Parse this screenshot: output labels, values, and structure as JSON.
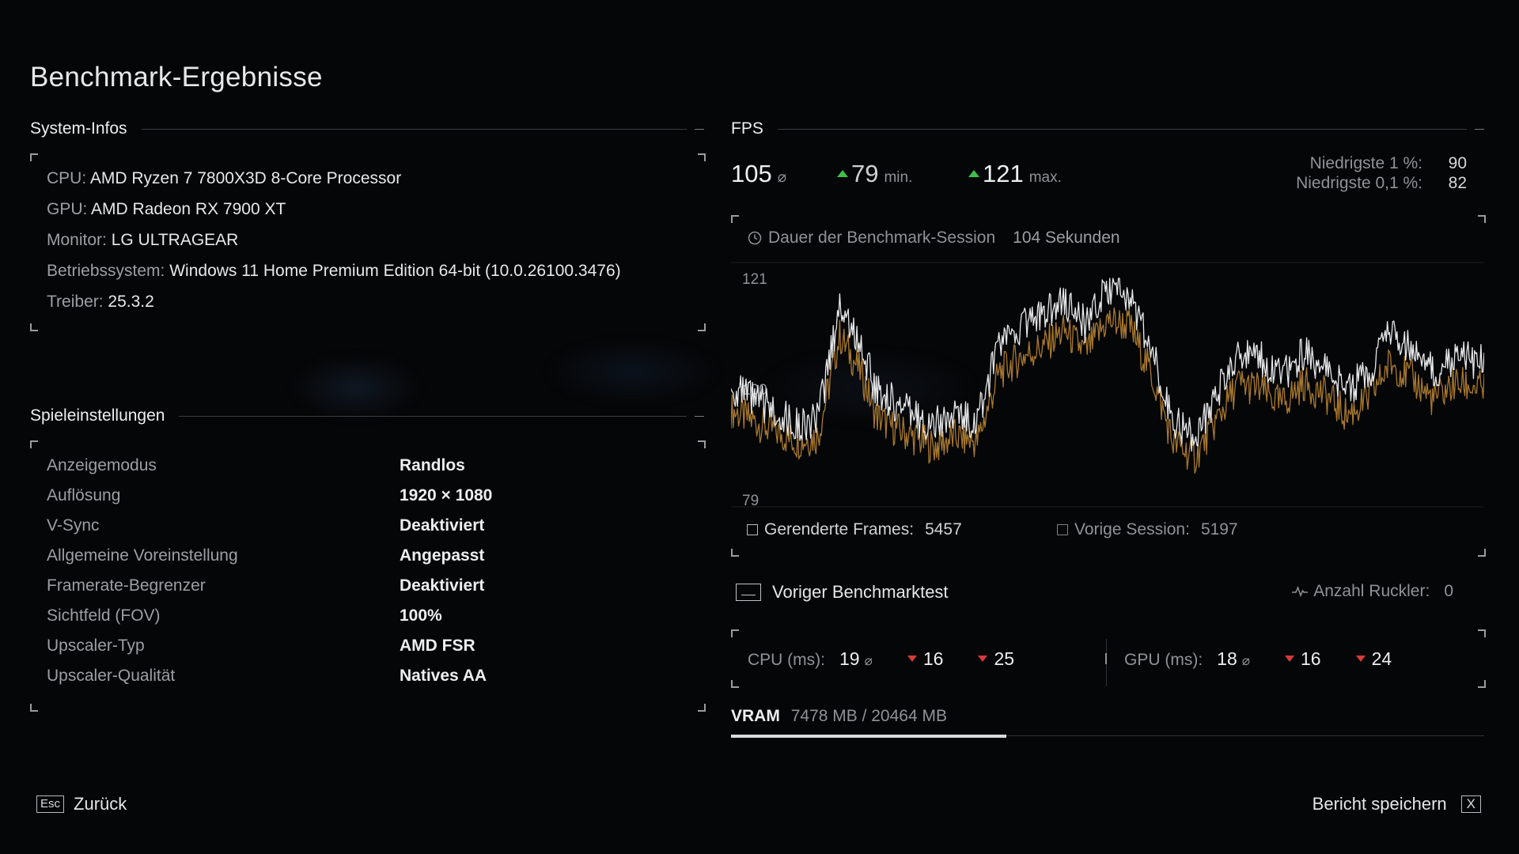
{
  "title": "Benchmark-Ergebnisse",
  "system": {
    "heading": "System-Infos",
    "rows": [
      {
        "label": "CPU:",
        "value": "AMD Ryzen 7 7800X3D 8-Core Processor"
      },
      {
        "label": "GPU:",
        "value": "AMD Radeon RX 7900 XT"
      },
      {
        "label": "Monitor:",
        "value": "LG ULTRAGEAR"
      },
      {
        "label": "Betriebssystem:",
        "value": "Windows 11 Home Premium Edition 64-bit (10.0.26100.3476)"
      },
      {
        "label": "Treiber:",
        "value": "25.3.2"
      }
    ]
  },
  "settings": {
    "heading": "Spieleinstellungen",
    "rows": [
      {
        "label": "Anzeigemodus",
        "value": "Randlos"
      },
      {
        "label": "Auflösung",
        "value": "1920 × 1080"
      },
      {
        "label": "V-Sync",
        "value": "Deaktiviert"
      },
      {
        "label": "Allgemeine Voreinstellung",
        "value": "Angepasst"
      },
      {
        "label": "Framerate-Begrenzer",
        "value": "Deaktiviert"
      },
      {
        "label": "Sichtfeld (FOV)",
        "value": "100%"
      },
      {
        "label": "Upscaler-Typ",
        "value": "AMD FSR"
      },
      {
        "label": "Upscaler-Qualität",
        "value": "Natives AA"
      }
    ]
  },
  "fps": {
    "heading": "FPS",
    "avg": "105",
    "avg_unit": "⌀",
    "min": "79",
    "min_unit": "min.",
    "max": "121",
    "max_unit": "max.",
    "low1_label": "Niedrigste 1 %:",
    "low1_value": "90",
    "low01_label": "Niedrigste 0,1 %:",
    "low01_value": "82",
    "duration_label": "Dauer der Benchmark-Session",
    "duration_value": "104 Sekunden",
    "rendered_label": "Gerenderte Frames:",
    "rendered_value": "5457",
    "previous_label": "Vorige Session:",
    "previous_value": "5197"
  },
  "chart_data": {
    "type": "line",
    "x_range": [
      0,
      104
    ],
    "y_ticks": [
      121,
      100,
      79
    ],
    "ylim": [
      79,
      121
    ],
    "series": [
      {
        "color": "#e8e8ea",
        "x": [
          0,
          3,
          6,
          9,
          12,
          15,
          18,
          20,
          22,
          25,
          28,
          31,
          34,
          37,
          40,
          43,
          46,
          49,
          52,
          55,
          58,
          61,
          64,
          67,
          70,
          73,
          76,
          79,
          82,
          85,
          88,
          91,
          94,
          97,
          100,
          104
        ],
        "values": [
          100,
          98,
          96,
          93,
          94,
          116,
          108,
          100,
          98,
          95,
          93,
          95,
          94,
          108,
          112,
          114,
          117,
          112,
          119,
          118,
          108,
          94,
          91,
          99,
          107,
          106,
          102,
          107,
          104,
          100,
          103,
          111,
          108,
          103,
          106,
          105
        ]
      },
      {
        "color": "#a8782e",
        "x": [
          0,
          3,
          6,
          9,
          12,
          15,
          18,
          20,
          22,
          25,
          28,
          31,
          34,
          37,
          40,
          43,
          46,
          49,
          52,
          55,
          58,
          61,
          64,
          67,
          70,
          73,
          76,
          79,
          82,
          85,
          88,
          91,
          94,
          97,
          100,
          104
        ],
        "values": [
          96,
          94,
          92,
          90,
          91,
          110,
          103,
          95,
          93,
          91,
          89,
          91,
          90,
          103,
          106,
          108,
          111,
          107,
          113,
          112,
          103,
          90,
          87,
          94,
          101,
          100,
          97,
          101,
          99,
          95,
          98,
          105,
          102,
          98,
          101,
          100
        ]
      }
    ]
  },
  "prev_benchmark": {
    "label": "Voriger Benchmarktest"
  },
  "stutter": {
    "label": "Anzahl Ruckler:",
    "value": "0"
  },
  "cpu": {
    "label": "CPU (ms):",
    "avg": "19",
    "avg_unit": "⌀",
    "v1": "16",
    "v2": "25"
  },
  "gpu": {
    "label": "GPU (ms):",
    "avg": "18",
    "avg_unit": "⌀",
    "v1": "16",
    "v2": "24"
  },
  "vram": {
    "label": "VRAM",
    "value": "7478 MB / 20464 MB",
    "used_mb": 7478,
    "total_mb": 20464
  },
  "footer": {
    "back_key": "Esc",
    "back_label": "Zurück",
    "save_label": "Bericht speichern",
    "save_key": "X"
  },
  "icons": {
    "clock": "clock-icon",
    "pulse": "pulse-icon",
    "prev": "previous-benchmark-icon"
  }
}
